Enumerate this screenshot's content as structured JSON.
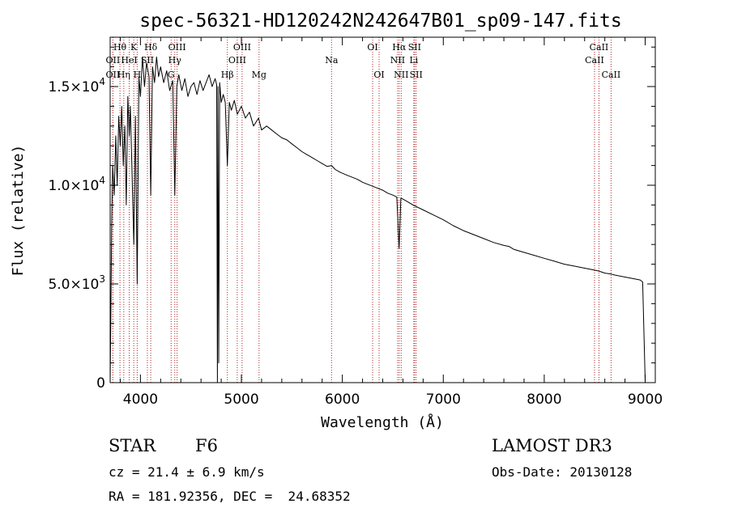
{
  "chart_data": {
    "type": "line",
    "title": "spec-56321-HD120242N242647B01_sp09-147.fits",
    "xlabel": "Wavelength (Å)",
    "ylabel": "Flux (relative)",
    "xlim": [
      3700,
      9100
    ],
    "ylim": [
      0,
      17500
    ],
    "x_ticks": [
      4000,
      5000,
      6000,
      7000,
      8000,
      9000
    ],
    "x_tick_labels": [
      "4000",
      "5000",
      "6000",
      "7000",
      "8000",
      "9000"
    ],
    "y_ticks": [
      0,
      5000,
      10000,
      15000
    ],
    "y_tick_labels": [
      {
        "type": "plain",
        "text": "0"
      },
      {
        "type": "sci",
        "mantissa": "5.0",
        "times": "×10",
        "exponent": "3"
      },
      {
        "type": "sci",
        "mantissa": "1.0",
        "times": "×10",
        "exponent": "4"
      },
      {
        "type": "sci",
        "mantissa": "1.5",
        "times": "×10",
        "exponent": "4"
      }
    ],
    "series": [
      {
        "name": "flux",
        "x": [
          3700,
          3715,
          3725,
          3740,
          3755,
          3770,
          3785,
          3800,
          3815,
          3830,
          3845,
          3860,
          3875,
          3889,
          3900,
          3915,
          3934,
          3950,
          3968,
          3985,
          4000,
          4020,
          4040,
          4060,
          4085,
          4102,
          4120,
          4140,
          4160,
          4180,
          4200,
          4230,
          4260,
          4290,
          4320,
          4340,
          4360,
          4380,
          4410,
          4440,
          4470,
          4500,
          4530,
          4560,
          4590,
          4620,
          4650,
          4680,
          4710,
          4740,
          4755,
          4762,
          4768,
          4775,
          4785,
          4800,
          4820,
          4840,
          4861,
          4880,
          4900,
          4930,
          4960,
          5000,
          5040,
          5080,
          5120,
          5170,
          5200,
          5250,
          5300,
          5350,
          5400,
          5450,
          5500,
          5550,
          5600,
          5650,
          5700,
          5750,
          5800,
          5850,
          5893,
          5930,
          5980,
          6050,
          6100,
          6150,
          6200,
          6250,
          6300,
          6350,
          6400,
          6450,
          6500,
          6540,
          6562,
          6580,
          6600,
          6650,
          6700,
          6800,
          6900,
          7000,
          7100,
          7200,
          7300,
          7400,
          7500,
          7600,
          7650,
          7700,
          7800,
          7900,
          8000,
          8100,
          8200,
          8300,
          8400,
          8498,
          8542,
          8600,
          8662,
          8700,
          8800,
          8900,
          8950,
          8975,
          9000
        ],
        "y": [
          0,
          8000,
          11000,
          9500,
          12500,
          10000,
          13500,
          12000,
          14000,
          11000,
          13000,
          9000,
          14500,
          12500,
          14000,
          11000,
          7000,
          13500,
          5000,
          15500,
          14500,
          16500,
          15000,
          16200,
          15500,
          9500,
          16000,
          15200,
          16500,
          15500,
          16000,
          15200,
          15800,
          14800,
          15300,
          9500,
          15000,
          15600,
          14800,
          15400,
          14500,
          15000,
          15200,
          14600,
          15300,
          14800,
          15200,
          15600,
          15000,
          15400,
          15100,
          0,
          15000,
          1000,
          15200,
          14200,
          14600,
          14200,
          11000,
          14200,
          13800,
          14300,
          13600,
          14000,
          13400,
          13700,
          13000,
          13400,
          12800,
          13000,
          12800,
          12600,
          12400,
          12300,
          12100,
          11900,
          11700,
          11550,
          11400,
          11250,
          11100,
          10950,
          11000,
          10800,
          10650,
          10500,
          10400,
          10300,
          10150,
          10050,
          9950,
          9850,
          9750,
          9600,
          9500,
          9400,
          6800,
          9350,
          9300,
          9150,
          9000,
          8750,
          8500,
          8250,
          7950,
          7700,
          7500,
          7300,
          7100,
          6950,
          6900,
          6750,
          6600,
          6450,
          6300,
          6150,
          6000,
          5900,
          5800,
          5700,
          5650,
          5550,
          5500,
          5450,
          5350,
          5250,
          5200,
          5100,
          100
        ],
        "color": "#000000"
      }
    ],
    "line_color": "#b22222",
    "spectral_lines": [
      {
        "label": "Hθ",
        "x": 3797,
        "row": 1
      },
      {
        "label": "OII",
        "x": 3727,
        "row": 2
      },
      {
        "label": "OII",
        "x": 3727,
        "row": 3
      },
      {
        "label": "Hη",
        "x": 3835,
        "row": 3
      },
      {
        "label": "K",
        "x": 3934,
        "row": 1
      },
      {
        "label": "HeI",
        "x": 3889,
        "row": 2
      },
      {
        "label": "H",
        "x": 3968,
        "row": 3
      },
      {
        "label": "SII",
        "x": 4069,
        "row": 2
      },
      {
        "label": "Hδ",
        "x": 4102,
        "row": 1
      },
      {
        "label": "OIII",
        "x": 4363,
        "row": 1
      },
      {
        "label": "Hγ",
        "x": 4340,
        "row": 2
      },
      {
        "label": "G",
        "x": 4304,
        "row": 3
      },
      {
        "label": "Hβ",
        "x": 4861,
        "row": 3
      },
      {
        "label": "OIII",
        "x": 5007,
        "row": 1
      },
      {
        "label": "OIII",
        "x": 4959,
        "row": 2
      },
      {
        "label": "Mg",
        "x": 5175,
        "row": 3
      },
      {
        "label": "Na",
        "x": 5893,
        "row": 2
      },
      {
        "label": "OI",
        "x": 6300,
        "row": 1
      },
      {
        "label": "OI",
        "x": 6364,
        "row": 3
      },
      {
        "label": "Hα",
        "x": 6563,
        "row": 1
      },
      {
        "label": "SII",
        "x": 6716,
        "row": 1
      },
      {
        "label": "NII",
        "x": 6548,
        "row": 2
      },
      {
        "label": "Li",
        "x": 6708,
        "row": 2
      },
      {
        "label": "NII",
        "x": 6583,
        "row": 3
      },
      {
        "label": "SII",
        "x": 6731,
        "row": 3
      },
      {
        "label": "CaII",
        "x": 8542,
        "row": 1
      },
      {
        "label": "CaII",
        "x": 8498,
        "row": 2
      },
      {
        "label": "CaII",
        "x": 8662,
        "row": 3
      }
    ],
    "grid": false,
    "legend": "none"
  },
  "info": {
    "object_class": "STAR",
    "subclass": "F6",
    "survey": "LAMOST DR3",
    "cz": "cz = 21.4 ± 6.9 km/s",
    "obs_date": "Obs-Date: 20130128",
    "coords": "RA = 181.92356, DEC =  24.68352"
  }
}
